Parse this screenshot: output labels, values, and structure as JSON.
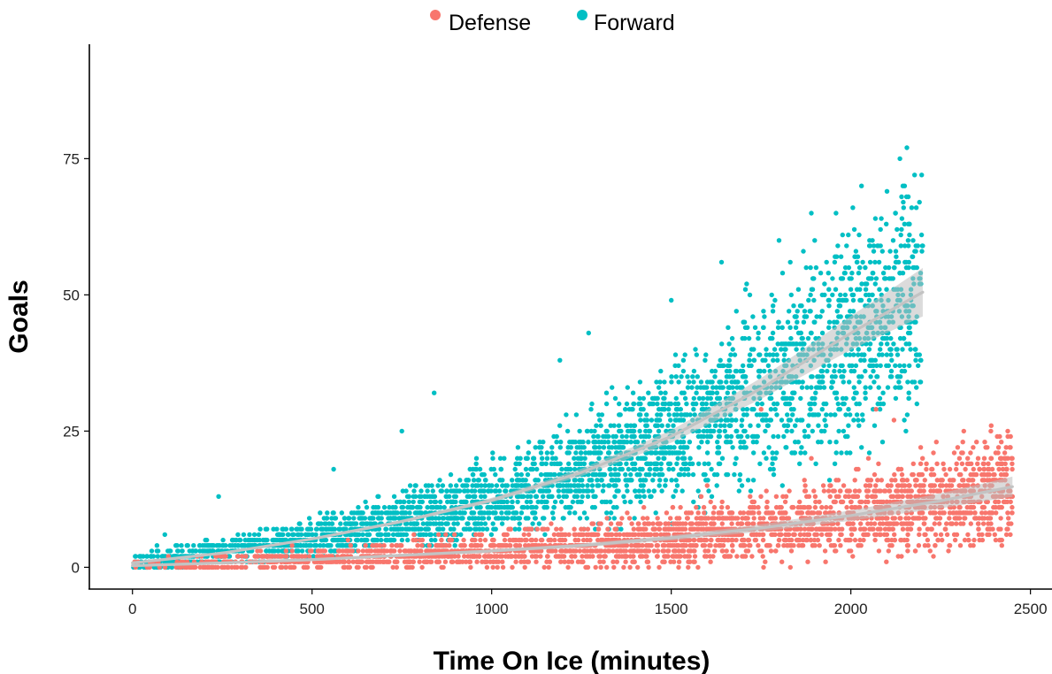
{
  "chart_data": {
    "type": "scatter",
    "title": "",
    "xlabel": "Time On Ice (minutes)",
    "ylabel": "Goals",
    "xlim": [
      -120,
      2560
    ],
    "ylim": [
      -4,
      96
    ],
    "x_ticks": [
      0,
      500,
      1000,
      1500,
      2000,
      2500
    ],
    "y_ticks": [
      0,
      25,
      50,
      75
    ],
    "grid": false,
    "legend_position": "top",
    "point_shape": "circle",
    "series": [
      {
        "name": "Defense",
        "color": "#F8766D",
        "x_range": [
          0,
          2450
        ],
        "trend": {
          "method": "smooth",
          "x": [
            0,
            250,
            500,
            750,
            1000,
            1250,
            1500,
            1750,
            2000,
            2250,
            2450
          ],
          "y": [
            0.3,
            0.8,
            1.4,
            2.2,
            3.0,
            4.0,
            5.4,
            7.2,
            9.5,
            12.2,
            14.8
          ]
        },
        "points_sample": [
          [
            1750,
            29
          ],
          [
            1890,
            20
          ],
          [
            2070,
            29
          ],
          [
            2120,
            27
          ],
          [
            2230,
            21
          ],
          [
            2410,
            21
          ],
          [
            2430,
            19
          ],
          [
            2340,
            17
          ],
          [
            2450,
            13
          ],
          [
            2390,
            8
          ],
          [
            2230,
            2
          ],
          [
            2080,
            9
          ],
          [
            1600,
            15
          ],
          [
            1180,
            7
          ]
        ]
      },
      {
        "name": "Forward",
        "color": "#00BFC4",
        "x_range": [
          0,
          2200
        ],
        "trend": {
          "method": "smooth",
          "x": [
            0,
            250,
            500,
            750,
            1000,
            1250,
            1500,
            1750,
            2000,
            2200
          ],
          "y": [
            0.8,
            2.6,
            5.2,
            8.4,
            12.3,
            17.4,
            24.0,
            32.8,
            43.0,
            50.5
          ]
        },
        "points_sample": [
          [
            1890,
            65
          ],
          [
            1800,
            60
          ],
          [
            2200,
            59
          ],
          [
            1640,
            56
          ],
          [
            1810,
            54
          ],
          [
            1710,
            52
          ],
          [
            1500,
            49
          ],
          [
            1270,
            43
          ],
          [
            1980,
            43
          ],
          [
            2100,
            39
          ],
          [
            1190,
            38
          ],
          [
            840,
            32
          ],
          [
            750,
            25
          ],
          [
            560,
            18
          ],
          [
            240,
            13
          ],
          [
            90,
            6
          ],
          [
            20,
            2
          ]
        ]
      }
    ]
  }
}
